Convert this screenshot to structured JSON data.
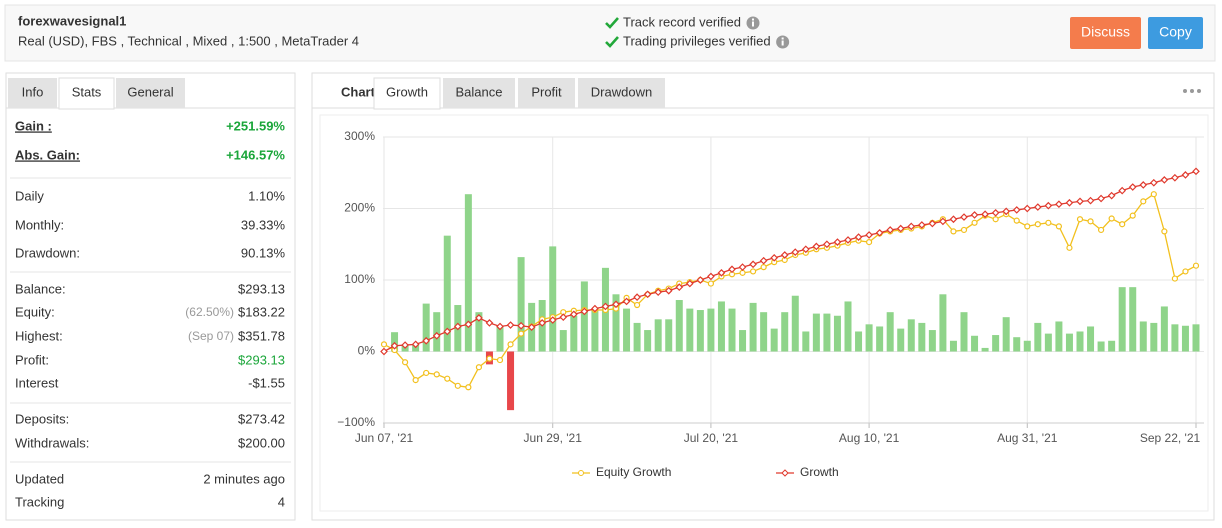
{
  "header": {
    "name": "forexwavesignal1",
    "details": "Real (USD), FBS , Technical , Mixed , 1:500 , MetaTrader 4",
    "verifications": [
      "Track record verified",
      "Trading privileges verified"
    ],
    "buttons": [
      {
        "label": "Discuss",
        "color": "#f47c4c"
      },
      {
        "label": "Copy",
        "color": "#3d9be0"
      }
    ]
  },
  "left_panel": {
    "tabs": [
      "Info",
      "Stats",
      "General"
    ],
    "active_tab": 1,
    "groups": [
      [
        {
          "label": "Gain :",
          "value": "+251.59%",
          "value_color": "#1ba63a"
        },
        {
          "label": "Abs. Gain:",
          "value": "+146.57%",
          "value_color": "#1ba63a"
        }
      ],
      [
        {
          "label": "Daily",
          "value": "1.10%"
        },
        {
          "label": "Monthly:",
          "value": "39.33%"
        },
        {
          "label": "Drawdown:",
          "value": "90.13%"
        }
      ],
      [
        {
          "label": "Balance:",
          "value": "$293.13"
        },
        {
          "label": "Equity:",
          "note": "(62.50%)",
          "value": "$183.22"
        },
        {
          "label": "Highest:",
          "note": "(Sep 07)",
          "value": "$351.78"
        },
        {
          "label": "Profit:",
          "value": "$293.13",
          "value_color": "#1ba63a"
        },
        {
          "label": "Interest",
          "value": "-$1.55"
        }
      ],
      [
        {
          "label": "Deposits:",
          "value": "$273.42"
        },
        {
          "label": "Withdrawals:",
          "value": "$200.00"
        }
      ],
      [
        {
          "label": "Updated",
          "value": "2 minutes ago"
        },
        {
          "label": "Tracking",
          "value": "4"
        }
      ]
    ]
  },
  "chart_panel": {
    "label": "Chart",
    "tabs": [
      "Growth",
      "Balance",
      "Profit",
      "Drawdown"
    ],
    "active_tab": 0
  },
  "chart_data": {
    "type": "combo",
    "categories": [
      "Jun 07, '21",
      null,
      null,
      null,
      null,
      null,
      null,
      null,
      null,
      null,
      null,
      null,
      null,
      null,
      null,
      null,
      "Jun 29, '21",
      null,
      null,
      null,
      null,
      null,
      null,
      null,
      null,
      null,
      null,
      null,
      null,
      null,
      null,
      "Jul 20, '21",
      null,
      null,
      null,
      null,
      null,
      null,
      null,
      null,
      null,
      null,
      null,
      null,
      null,
      null,
      "Aug 10, '21",
      null,
      null,
      null,
      null,
      null,
      null,
      null,
      null,
      null,
      null,
      null,
      null,
      null,
      null,
      "Aug 31, '21",
      null,
      null,
      null,
      null,
      null,
      null,
      null,
      null,
      null,
      null,
      null,
      null,
      null,
      null,
      null,
      "Sep 22, '21"
    ],
    "bar_values": [
      0,
      27,
      10,
      10,
      67,
      55,
      162,
      65,
      220,
      55,
      -18,
      35,
      -82,
      132,
      68,
      72,
      147,
      30,
      50,
      98,
      60,
      117,
      80,
      60,
      40,
      30,
      45,
      45,
      72,
      60,
      58,
      60,
      70,
      60,
      30,
      68,
      55,
      32,
      55,
      78,
      28,
      53,
      53,
      50,
      70,
      28,
      38,
      35,
      55,
      32,
      45,
      40,
      30,
      80,
      15,
      55,
      22,
      5,
      23,
      48,
      20,
      15,
      40,
      25,
      42,
      25,
      28,
      35,
      14,
      15,
      90,
      90,
      42,
      40,
      63,
      38,
      36,
      38
    ],
    "bar_color": "#8fd48a",
    "bar_negative_color": "#e8474a",
    "series": [
      {
        "name": "Equity Growth",
        "color": "#f2c01e",
        "marker": "circle",
        "values": [
          10,
          2,
          -15,
          -40,
          -30,
          -32,
          -38,
          -48,
          -50,
          -22,
          -10,
          -12,
          10,
          25,
          35,
          45,
          48,
          55,
          57,
          58,
          58,
          58,
          60,
          75,
          65,
          80,
          85,
          88,
          95,
          97,
          100,
          95,
          105,
          108,
          110,
          112,
          118,
          125,
          128,
          135,
          138,
          143,
          145,
          148,
          152,
          155,
          153,
          165,
          168,
          170,
          172,
          175,
          180,
          185,
          168,
          170,
          180,
          190,
          185,
          192,
          183,
          175,
          178,
          180,
          175,
          145,
          185,
          182,
          170,
          186,
          178,
          190,
          210,
          220,
          168,
          102,
          112,
          120
        ]
      },
      {
        "name": "Growth",
        "color": "#e03a2e",
        "marker": "diamond",
        "values": [
          0,
          8,
          9,
          10,
          15,
          22,
          28,
          35,
          38,
          47,
          40,
          35,
          37,
          36,
          34,
          40,
          44,
          48,
          52,
          56,
          60,
          63,
          66,
          70,
          76,
          80,
          83,
          85,
          90,
          95,
          100,
          105,
          110,
          115,
          118,
          122,
          127,
          131,
          135,
          139,
          143,
          147,
          150,
          153,
          156,
          160,
          163,
          166,
          170,
          172,
          175,
          177,
          179,
          182,
          185,
          188,
          191,
          192,
          194,
          196,
          198,
          200,
          202,
          204,
          206,
          208,
          210,
          211,
          214,
          218,
          225,
          230,
          233,
          236,
          240,
          243,
          247,
          252
        ]
      }
    ],
    "ylim": [
      -100,
      300
    ],
    "yticks": [
      {
        "value": -100,
        "label": "−100%"
      },
      {
        "value": 0,
        "label": "0%"
      },
      {
        "value": 100,
        "label": "100%"
      },
      {
        "value": 200,
        "label": "200%"
      },
      {
        "value": 300,
        "label": "300%"
      }
    ],
    "grid": true
  }
}
